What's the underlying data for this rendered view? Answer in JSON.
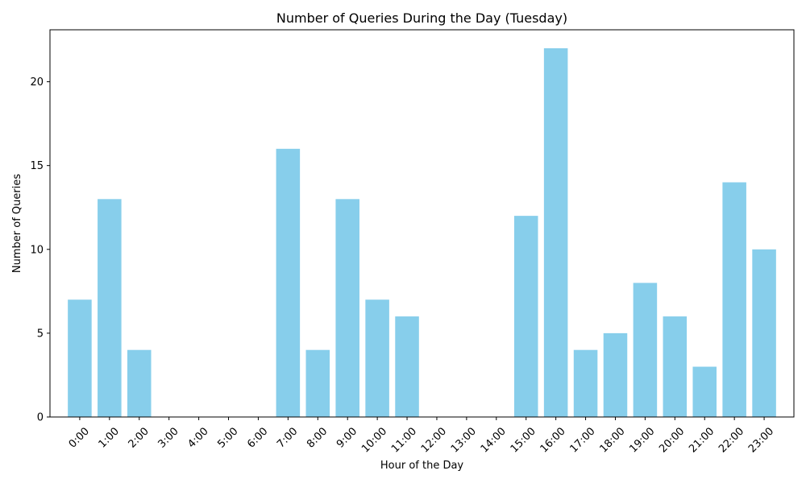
{
  "chart_data": {
    "type": "bar",
    "title": "Number of Queries During the Day (Tuesday)",
    "xlabel": "Hour of the Day",
    "ylabel": "Number of Queries",
    "categories": [
      "0:00",
      "1:00",
      "2:00",
      "3:00",
      "4:00",
      "5:00",
      "6:00",
      "7:00",
      "8:00",
      "9:00",
      "10:00",
      "11:00",
      "12:00",
      "13:00",
      "14:00",
      "15:00",
      "16:00",
      "17:00",
      "18:00",
      "19:00",
      "20:00",
      "21:00",
      "22:00",
      "23:00"
    ],
    "values": [
      7,
      13,
      4,
      0,
      0,
      0,
      0,
      16,
      4,
      13,
      7,
      6,
      0,
      0,
      0,
      12,
      22,
      4,
      5,
      8,
      6,
      3,
      14,
      10
    ],
    "ylim": [
      0,
      23.1
    ],
    "yticks": [
      0,
      5,
      10,
      15,
      20
    ],
    "bar_color": "#87ceeb",
    "grid": false,
    "x_tick_rotation_deg": 45
  }
}
